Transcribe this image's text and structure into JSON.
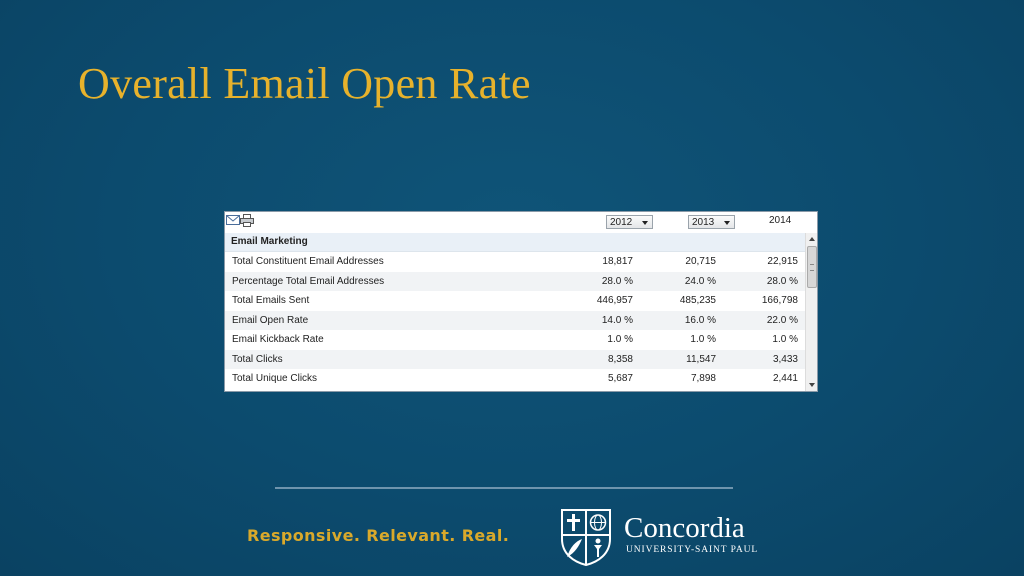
{
  "slide": {
    "title": "Overall Email Open Rate",
    "tagline": "Responsive. Relevant. Real.",
    "logo": {
      "name": "Concordia",
      "subtitle": "UNIVERSITY-SAINT PAUL"
    }
  },
  "panel": {
    "toolbar": {
      "icons": [
        "email-icon",
        "print-icon"
      ]
    },
    "year_selects": [
      {
        "value": "2012"
      },
      {
        "value": "2013"
      }
    ],
    "year_static": "2014",
    "section_label": "Email Marketing",
    "rows": [
      {
        "label": "Total Constituent Email Addresses",
        "v2012": "18,817",
        "v2013": "20,715",
        "v2014": "22,915"
      },
      {
        "label": "Percentage Total Email Addresses",
        "v2012": "28.0 %",
        "v2013": "24.0 %",
        "v2014": "28.0 %"
      },
      {
        "label": "Total Emails Sent",
        "v2012": "446,957",
        "v2013": "485,235",
        "v2014": "166,798"
      },
      {
        "label": "Email Open Rate",
        "v2012": "14.0 %",
        "v2013": "16.0 %",
        "v2014": "22.0 %"
      },
      {
        "label": "Email Kickback Rate",
        "v2012": "1.0 %",
        "v2013": "1.0 %",
        "v2014": "1.0 %"
      },
      {
        "label": "Total Clicks",
        "v2012": "8,358",
        "v2013": "11,547",
        "v2014": "3,433"
      },
      {
        "label": "Total Unique Clicks",
        "v2012": "5,687",
        "v2013": "7,898",
        "v2014": "2,441"
      }
    ]
  },
  "colors": {
    "background": "#0c4b6e",
    "accent_gold": "#e7b22c",
    "section_bg": "#e9f0f7",
    "alt_row_bg": "#f1f3f5"
  }
}
